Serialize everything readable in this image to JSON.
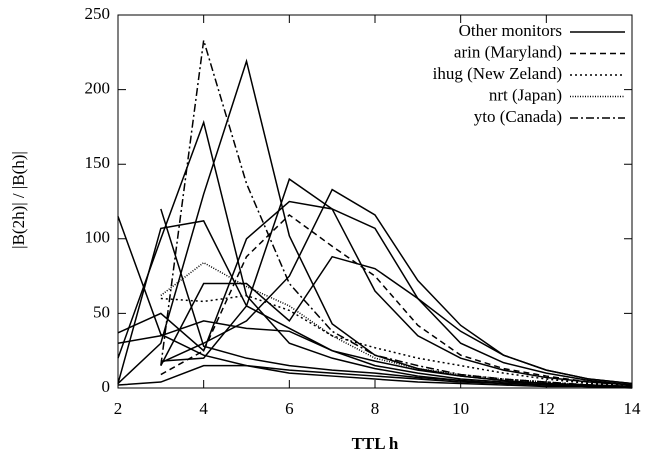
{
  "chart_data": {
    "type": "line",
    "xlabel": "TTL h",
    "ylabel": "|B(2h)| / |B(h)|",
    "x": [
      2,
      3,
      4,
      5,
      6,
      7,
      8,
      9,
      10,
      11,
      12,
      13,
      14
    ],
    "xlim": [
      2,
      14
    ],
    "xticks": [
      2,
      4,
      6,
      8,
      10,
      12,
      14
    ],
    "ylim": [
      0,
      250
    ],
    "yticks": [
      0,
      50,
      100,
      150,
      200,
      250
    ],
    "legend": "upper right",
    "series": [
      {
        "name": "Other monitors",
        "color": "#000000",
        "dash": "solid",
        "values": [
          3,
          30,
          130,
          219,
          102,
          43,
          22,
          13,
          8,
          5,
          3,
          2,
          1
        ]
      },
      {
        "name": "Other monitors",
        "color": "#000000",
        "dash": "solid",
        "values": [
          20,
          100,
          178,
          62,
          30,
          20,
          13,
          8,
          5,
          3,
          2,
          1,
          1
        ]
      },
      {
        "name": "Other monitors",
        "color": "#000000",
        "dash": "solid",
        "values": [
          115,
          36,
          22,
          15,
          12,
          10,
          8,
          6,
          4,
          3,
          2,
          1,
          1
        ]
      },
      {
        "name": "Other monitors",
        "color": "#000000",
        "dash": "solid",
        "values": [
          3,
          107,
          112,
          55,
          40,
          25,
          15,
          10,
          6,
          4,
          3,
          2,
          1
        ]
      },
      {
        "name": "Other monitors",
        "color": "#000000",
        "dash": "solid",
        "values": [
          null,
          18,
          20,
          55,
          140,
          120,
          65,
          35,
          20,
          12,
          7,
          4,
          2
        ]
      },
      {
        "name": "Other monitors",
        "color": "#000000",
        "dash": "solid",
        "values": [
          null,
          17,
          30,
          45,
          75,
          133,
          116,
          72,
          42,
          22,
          12,
          6,
          3
        ]
      },
      {
        "name": "Other monitors",
        "color": "#000000",
        "dash": "solid",
        "values": [
          null,
          120,
          28,
          20,
          15,
          12,
          10,
          7,
          5,
          3,
          2,
          1,
          1
        ]
      },
      {
        "name": "Other monitors",
        "color": "#000000",
        "dash": "solid",
        "values": [
          37,
          50,
          25,
          100,
          125,
          120,
          107,
          60,
          30,
          17,
          10,
          5,
          2
        ]
      },
      {
        "name": "Other monitors",
        "color": "#000000",
        "dash": "solid",
        "values": [
          null,
          15,
          70,
          70,
          45,
          88,
          80,
          60,
          38,
          22,
          12,
          6,
          3
        ]
      },
      {
        "name": "Other monitors",
        "color": "#000000",
        "dash": "solid",
        "values": [
          30,
          35,
          45,
          40,
          38,
          25,
          18,
          12,
          8,
          5,
          3,
          2,
          1
        ]
      },
      {
        "name": "Other monitors",
        "color": "#000000",
        "dash": "solid",
        "values": [
          2,
          4,
          15,
          15,
          10,
          8,
          6,
          4,
          3,
          2,
          1,
          1,
          0
        ]
      },
      {
        "name": "arin (Maryland)",
        "color": "#000000",
        "dash": "6,4",
        "values": [
          null,
          9,
          25,
          88,
          116,
          95,
          75,
          42,
          22,
          13,
          8,
          4,
          2
        ]
      },
      {
        "name": "ihug (New Zeland)",
        "color": "#000000",
        "dash": "2,3",
        "values": [
          null,
          60,
          58,
          62,
          52,
          35,
          27,
          20,
          15,
          10,
          6,
          3,
          2
        ]
      },
      {
        "name": "nrt (Japan)",
        "color": "#000000",
        "dash": "1,1.5",
        "values": [
          null,
          62,
          84,
          68,
          55,
          35,
          20,
          13,
          9,
          6,
          4,
          2,
          1
        ]
      },
      {
        "name": "yto (Canada)",
        "color": "#000000",
        "dash": "8,3,2,3",
        "values": [
          null,
          15,
          233,
          137,
          70,
          38,
          22,
          15,
          9,
          6,
          4,
          2,
          1
        ]
      }
    ]
  }
}
